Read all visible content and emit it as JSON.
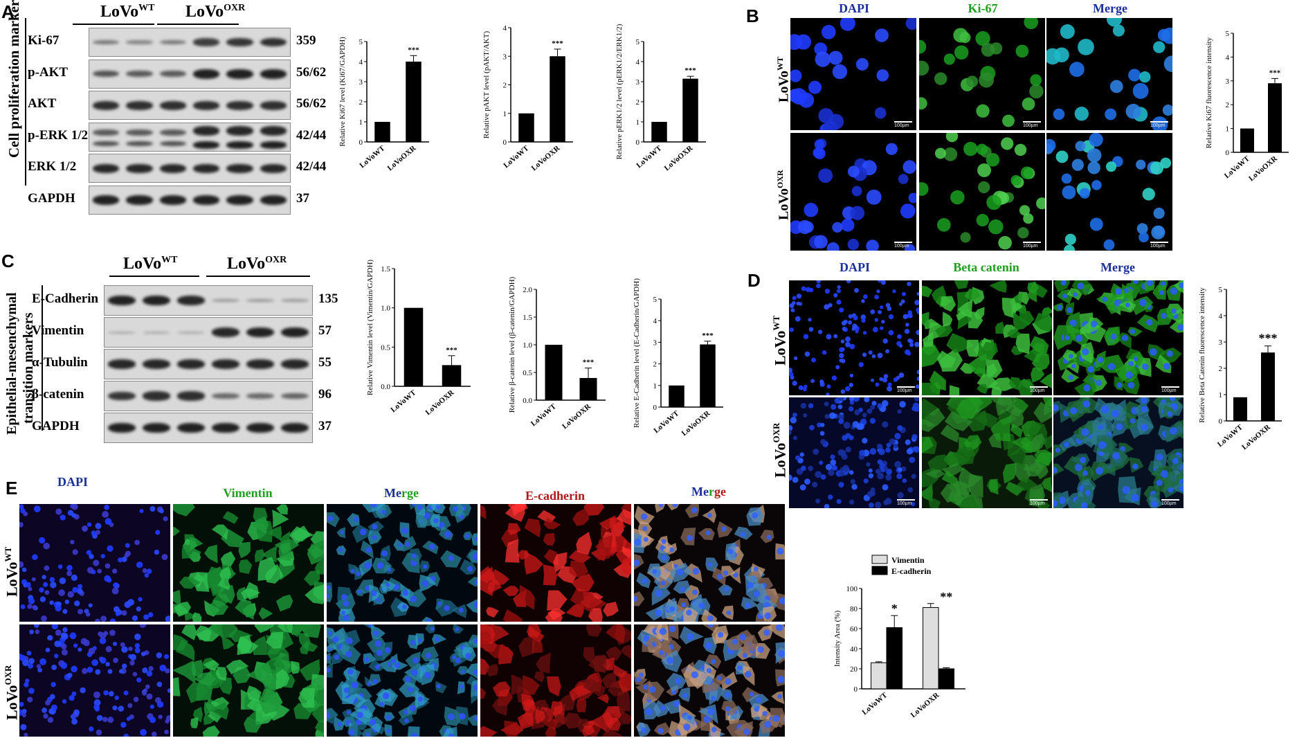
{
  "panels": {
    "A": {
      "label": "A",
      "groups": [
        "LoVo",
        "WT",
        "LoVo",
        "OXR"
      ],
      "side_label": "Cell proliferation markers",
      "rows": [
        {
          "name": "Ki-67",
          "kda": "359"
        },
        {
          "name": "p-AKT",
          "kda": "56/62"
        },
        {
          "name": "AKT",
          "kda": "56/62"
        },
        {
          "name": "p-ERK 1/2",
          "kda": "42/44"
        },
        {
          "name": "ERK 1/2",
          "kda": "42/44"
        },
        {
          "name": "GAPDH",
          "kda": "37"
        }
      ]
    },
    "B": {
      "label": "B",
      "channels": [
        "DAPI",
        "Ki-67",
        "Merge"
      ],
      "rows": [
        [
          "LoVo",
          "WT"
        ],
        [
          "LoVo",
          "OXR"
        ]
      ],
      "scale_bar": "100µm"
    },
    "C": {
      "label": "C",
      "groups": [
        "LoVo",
        "WT",
        "LoVo",
        "OXR"
      ],
      "side_label_1": "Epithelial-mesenchymal",
      "side_label_2": "transition markers",
      "rows": [
        {
          "name": "E-Cadherin",
          "kda": "135"
        },
        {
          "name": "Vimentin",
          "kda": "57"
        },
        {
          "name": "α-Tubulin",
          "kda": "55"
        },
        {
          "name": "β-catenin",
          "kda": "96"
        },
        {
          "name": "GAPDH",
          "kda": "37"
        }
      ]
    },
    "D": {
      "label": "D",
      "channels": [
        "DAPI",
        "Beta catenin",
        "Merge"
      ],
      "rows": [
        [
          "LoVo",
          "WT"
        ],
        [
          "LoVo",
          "OXR"
        ]
      ],
      "scale_bar": "100µm"
    },
    "E": {
      "label": "E",
      "channels": [
        "DAPI",
        "Vimentin",
        "Merge",
        "E-cadherin",
        "Merge"
      ],
      "rows": [
        [
          "LoVo",
          "WT"
        ],
        [
          "LoVo",
          "OXR"
        ]
      ]
    }
  },
  "colors": {
    "dapi": "#1f3cff",
    "green": "#22c02a",
    "red": "#e01818",
    "header_blue": "#1b2f9c",
    "header_green": "#20a020",
    "header_red": "#b01818"
  },
  "chart_data": [
    {
      "type": "bar",
      "panel": "A",
      "categories": [
        "LoVoWT",
        "LoVoOXR"
      ],
      "values": [
        1.0,
        4.0
      ],
      "errors": [
        0,
        0.3
      ],
      "ylabel": "Relative Ki67 level (Ki67/GAPDH)",
      "ylim": [
        0,
        5
      ],
      "yticks": [
        0,
        1,
        2,
        3,
        4,
        5
      ],
      "annotations": [
        "",
        "***"
      ]
    },
    {
      "type": "bar",
      "panel": "A",
      "categories": [
        "LoVoWT",
        "LoVoOXR"
      ],
      "values": [
        1.0,
        3.0
      ],
      "errors": [
        0,
        0.25
      ],
      "ylabel": "Relative pAKT level (pAKT/AKT)",
      "ylim": [
        0,
        4
      ],
      "yticks": [
        0,
        1,
        2,
        3,
        4
      ],
      "annotations": [
        "",
        "***"
      ]
    },
    {
      "type": "bar",
      "panel": "A",
      "categories": [
        "LoVoWT",
        "LoVoOXR"
      ],
      "values": [
        1.0,
        3.15
      ],
      "errors": [
        0,
        0.12
      ],
      "ylabel": "Relative pERK1/2 level (pERK1/2/ERK1/2)",
      "ylim": [
        0,
        5
      ],
      "yticks": [
        0,
        1,
        2,
        3,
        4,
        5
      ],
      "annotations": [
        "",
        "***"
      ]
    },
    {
      "type": "bar",
      "panel": "B",
      "categories": [
        "LoVoWT",
        "LoVoOXR"
      ],
      "values": [
        1.0,
        2.9
      ],
      "errors": [
        0,
        0.2
      ],
      "ylabel": "Relative Ki67 fluorescence intensity",
      "ylim": [
        0,
        5
      ],
      "yticks": [
        0,
        1,
        2,
        3,
        4,
        5
      ],
      "annotations": [
        "",
        "***"
      ]
    },
    {
      "type": "bar",
      "panel": "C",
      "categories": [
        "LoVoWT",
        "LoVoOXR"
      ],
      "values": [
        1.0,
        0.27
      ],
      "errors": [
        0,
        0.12
      ],
      "ylabel": "Relative Vimentin level (Vimentin/GAPDH)",
      "ylim": [
        0,
        1.5
      ],
      "yticks": [
        0.0,
        0.5,
        1.0,
        1.5
      ],
      "annotations": [
        "",
        "***"
      ]
    },
    {
      "type": "bar",
      "panel": "C",
      "categories": [
        "LoVoWT",
        "LoVoOXR"
      ],
      "values": [
        1.0,
        0.4
      ],
      "errors": [
        0,
        0.18
      ],
      "ylabel": "Relative β-catenin level (β-catenin/GAPDH)",
      "ylim": [
        0,
        2.0
      ],
      "yticks": [
        0.0,
        0.5,
        1.0,
        1.5,
        2.0
      ],
      "annotations": [
        "",
        "***"
      ]
    },
    {
      "type": "bar",
      "panel": "C",
      "categories": [
        "LoVoWT",
        "LoVoOXR"
      ],
      "values": [
        1.0,
        2.9
      ],
      "errors": [
        0,
        0.15
      ],
      "ylabel": "Relative E-Cadherin level (E-Cadherin/GAPDH)",
      "ylim": [
        0,
        5
      ],
      "yticks": [
        0,
        1,
        2,
        3,
        4,
        5
      ],
      "annotations": [
        "",
        "***"
      ]
    },
    {
      "type": "bar",
      "panel": "D",
      "categories": [
        "LoVoWT",
        "LoVoOXR"
      ],
      "values": [
        0.9,
        2.6
      ],
      "errors": [
        0,
        0.25
      ],
      "ylabel": "Relative Beta Catenin fluorescence intensity",
      "ylim": [
        0,
        5
      ],
      "yticks": [
        0,
        1,
        2,
        3,
        4,
        5
      ],
      "annotations": [
        "",
        "***"
      ]
    },
    {
      "type": "bar",
      "panel": "E",
      "categories": [
        "LoVoWT",
        "LoVoOXR"
      ],
      "series": [
        {
          "name": "Vimentin",
          "values": [
            26,
            81
          ],
          "errors": [
            1,
            4
          ],
          "color": "#dedede"
        },
        {
          "name": "E-cadherin",
          "values": [
            61,
            20
          ],
          "errors": [
            12,
            1
          ],
          "color": "#000000"
        }
      ],
      "ylabel": "Intensity Area (%)",
      "ylim": [
        0,
        100
      ],
      "yticks": [
        0,
        20,
        40,
        60,
        80,
        100
      ],
      "annotations": [
        "*",
        "**"
      ]
    }
  ]
}
